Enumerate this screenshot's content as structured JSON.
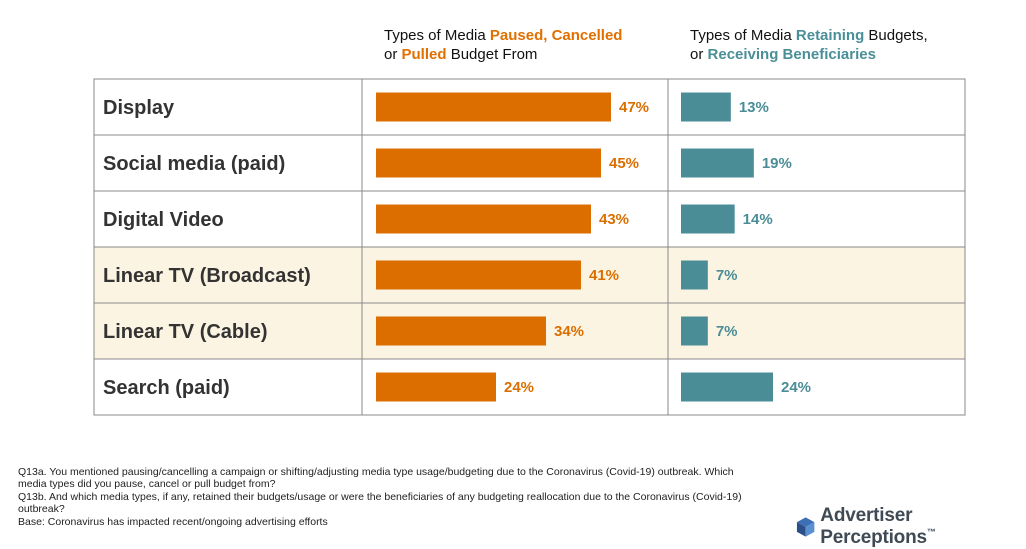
{
  "header": {
    "left": {
      "prefix": "Types of Media ",
      "highlight1": "Paused, Cancelled",
      "line2_prefix": "or ",
      "highlight2": "Pulled",
      "suffix": " Budget From"
    },
    "right": {
      "prefix": "Types of Media ",
      "highlight1": "Retaining",
      "suffix1": " Budgets,",
      "line2_prefix": "or ",
      "highlight2": "Receiving Beneficiaries"
    }
  },
  "colors": {
    "paused": "#dc6e00",
    "retaining": "#4b8d97",
    "highlight_row": "#fcf4e2",
    "border": "#8a8a8a"
  },
  "chart_data": {
    "type": "bar",
    "categories": [
      "Display",
      "Social media (paid)",
      "Digital Video",
      "Linear TV (Broadcast)",
      "Linear TV (Cable)",
      "Search (paid)"
    ],
    "series": [
      {
        "name": "Types of Media Paused, Cancelled or Pulled Budget From",
        "values": [
          47,
          45,
          43,
          41,
          34,
          24
        ]
      },
      {
        "name": "Types of Media Retaining Budgets, or Receiving Beneficiaries",
        "values": [
          13,
          19,
          14,
          7,
          7,
          24
        ]
      }
    ],
    "labels_paused": [
      "47%",
      "45%",
      "43%",
      "41%",
      "34%",
      "24%"
    ],
    "labels_retaining": [
      "13%",
      "19%",
      "14%",
      "7%",
      "7%",
      "24%"
    ],
    "highlighted_rows": [
      3,
      4
    ]
  },
  "footnote": {
    "q13a": "Q13a. You mentioned pausing/cancelling a campaign or shifting/adjusting media type usage/budgeting due to the Coronavirus (Covid-19) outbreak. Which media types did you pause, cancel or pull budget from?",
    "q13b": "Q13b. And which media types, if any, retained their budgets/usage or were the beneficiaries of any budgeting reallocation due to the Coronavirus (Covid-19) outbreak?",
    "base": "Base: Coronavirus has impacted recent/ongoing advertising efforts"
  },
  "logo": {
    "text": "Advertiser Perceptions",
    "tm": "™",
    "icon": "cube-logo-icon"
  }
}
